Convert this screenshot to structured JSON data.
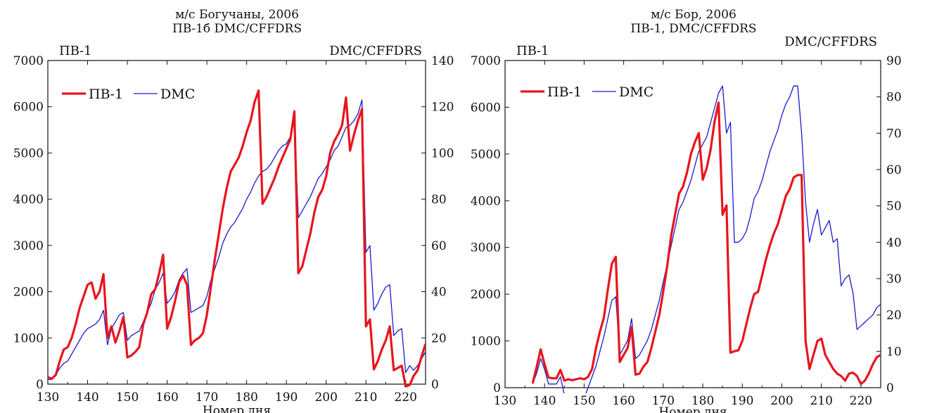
{
  "chart_data": [
    {
      "type": "line",
      "title": "м/с Богучаны, 2006",
      "subtitle": "ПВ-1б DMC/CFFDRS",
      "xlabel": "Номер дня",
      "ylabel_left": "ПВ-1",
      "ylabel_right": "DMC/CFFDRS",
      "xlim": [
        130,
        225
      ],
      "ylim_left": [
        0,
        7000
      ],
      "ylim_right": [
        0,
        140
      ],
      "xticks": [
        "130",
        "140",
        "150",
        "160",
        "170",
        "180",
        "190",
        "200",
        "210",
        "220"
      ],
      "yticks_left": [
        "0",
        "1000",
        "2000",
        "3000",
        "4000",
        "5000",
        "6000",
        "7000"
      ],
      "yticks_right": [
        "0",
        "20",
        "40",
        "60",
        "80",
        "100",
        "120",
        "140"
      ],
      "legend_position": "top-left",
      "series": [
        {
          "name": "ПВ-1",
          "axis": "left",
          "color": "#e8141c",
          "x": [
            130,
            131,
            132,
            133,
            134,
            135,
            136,
            137,
            138,
            139,
            140,
            141,
            142,
            143,
            144,
            145,
            146,
            147,
            148,
            149,
            150,
            151,
            152,
            153,
            154,
            155,
            156,
            157,
            158,
            159,
            160,
            161,
            162,
            163,
            164,
            165,
            166,
            167,
            168,
            169,
            170,
            171,
            172,
            173,
            174,
            175,
            176,
            177,
            178,
            179,
            180,
            181,
            182,
            183,
            184,
            185,
            186,
            187,
            188,
            189,
            190,
            191,
            192,
            193,
            194,
            195,
            196,
            197,
            198,
            199,
            200,
            201,
            202,
            203,
            204,
            205,
            206,
            207,
            208,
            209,
            210,
            211,
            212,
            213,
            214,
            215,
            216,
            217,
            218,
            219,
            220,
            221,
            222,
            223,
            224,
            225
          ],
          "values": [
            150,
            120,
            200,
            500,
            750,
            800,
            1000,
            1300,
            1650,
            1900,
            2150,
            2200,
            1850,
            2000,
            2380,
            1000,
            1250,
            900,
            1150,
            1450,
            580,
            620,
            700,
            800,
            1300,
            1550,
            1950,
            2050,
            2400,
            2800,
            1200,
            1450,
            1800,
            2200,
            2350,
            2150,
            850,
            950,
            1000,
            1100,
            1500,
            2100,
            2700,
            3250,
            3800,
            4250,
            4600,
            4750,
            4900,
            5150,
            5450,
            5700,
            6100,
            6350,
            3900,
            4050,
            4250,
            4450,
            4700,
            4900,
            5100,
            5300,
            5900,
            2400,
            2550,
            2900,
            3250,
            3700,
            4050,
            4200,
            4500,
            5000,
            5250,
            5400,
            5600,
            6200,
            5050,
            5400,
            5700,
            5950,
            1250,
            1400,
            320,
            500,
            750,
            950,
            1250,
            300,
            350,
            400,
            -50,
            -20,
            180,
            300,
            600,
            870
          ]
        },
        {
          "name": "DMC",
          "axis": "right",
          "color": "#1a1acc",
          "x": [
            130,
            131,
            132,
            133,
            134,
            135,
            136,
            137,
            138,
            139,
            140,
            141,
            142,
            143,
            144,
            145,
            146,
            147,
            148,
            149,
            150,
            151,
            152,
            153,
            154,
            155,
            156,
            157,
            158,
            159,
            160,
            161,
            162,
            163,
            164,
            165,
            166,
            167,
            168,
            169,
            170,
            171,
            172,
            173,
            174,
            175,
            176,
            177,
            178,
            179,
            180,
            181,
            182,
            183,
            184,
            185,
            186,
            187,
            188,
            189,
            190,
            191,
            192,
            193,
            194,
            195,
            196,
            197,
            198,
            199,
            200,
            201,
            202,
            203,
            204,
            205,
            206,
            207,
            208,
            209,
            210,
            211,
            212,
            213,
            214,
            215,
            216,
            217,
            218,
            219,
            220,
            221,
            222,
            223,
            224,
            225
          ],
          "values": [
            2,
            2,
            4,
            7,
            9,
            10,
            13,
            16,
            19,
            22,
            24,
            25,
            26,
            28,
            32,
            17,
            24,
            27,
            30,
            31,
            19,
            21,
            22,
            23,
            27,
            31,
            35,
            41,
            44,
            48,
            35,
            37,
            40,
            45,
            48,
            50,
            31,
            32,
            33,
            34,
            38,
            45,
            50,
            55,
            61,
            65,
            68,
            70,
            73,
            76,
            80,
            83,
            87,
            90,
            92,
            93,
            95,
            98,
            101,
            103,
            104,
            107,
            114,
            72,
            75,
            78,
            81,
            85,
            89,
            91,
            94,
            97,
            101,
            103,
            107,
            111,
            112,
            114,
            117,
            123,
            57,
            60,
            32,
            35,
            39,
            42,
            43,
            21,
            23,
            24,
            5,
            8,
            6,
            8,
            11,
            14
          ]
        }
      ]
    },
    {
      "type": "line",
      "title": "м/с Бор, 2006",
      "subtitle": "ПВ-1, DMC/CFFDRS",
      "xlabel": "Номер дня",
      "ylabel_left": "ПВ-1",
      "ylabel_right": "DMC/CFFDRS",
      "xlim": [
        130,
        225
      ],
      "ylim_left": [
        0,
        7000
      ],
      "ylim_right": [
        0,
        90
      ],
      "xticks": [
        "130",
        "140",
        "150",
        "160",
        "170",
        "180",
        "190",
        "200",
        "210",
        "220"
      ],
      "yticks_left": [
        "0",
        "1000",
        "2000",
        "3000",
        "4000",
        "5000",
        "6000",
        "7000"
      ],
      "yticks_right": [
        "0",
        "10",
        "20",
        "30",
        "40",
        "50",
        "60",
        "70",
        "80",
        "90"
      ],
      "legend_position": "top-left",
      "series": [
        {
          "name": "ПВ-1",
          "axis": "left",
          "color": "#e8141c",
          "x": [
            137,
            138,
            139,
            140,
            141,
            142,
            143,
            144,
            145,
            146,
            147,
            148,
            149,
            150,
            151,
            152,
            153,
            154,
            155,
            156,
            157,
            158,
            159,
            160,
            161,
            162,
            163,
            164,
            165,
            166,
            167,
            168,
            169,
            170,
            171,
            172,
            173,
            174,
            175,
            176,
            177,
            178,
            179,
            180,
            181,
            182,
            183,
            184,
            185,
            186,
            187,
            188,
            189,
            190,
            191,
            192,
            193,
            194,
            195,
            196,
            197,
            198,
            199,
            200,
            201,
            202,
            203,
            204,
            205,
            206,
            207,
            208,
            209,
            210,
            211,
            212,
            213,
            214,
            215,
            216,
            217,
            218,
            219,
            220,
            221,
            222,
            223,
            224,
            225
          ],
          "values": [
            100,
            450,
            820,
            500,
            220,
            200,
            200,
            380,
            150,
            180,
            160,
            180,
            200,
            180,
            230,
            400,
            850,
            1200,
            1500,
            2100,
            2650,
            2800,
            550,
            700,
            850,
            1300,
            280,
            300,
            450,
            550,
            850,
            1200,
            1550,
            2050,
            2600,
            3250,
            3700,
            4150,
            4300,
            4600,
            5000,
            5250,
            5450,
            4450,
            4700,
            5100,
            5700,
            6100,
            3700,
            3900,
            750,
            780,
            800,
            1000,
            1350,
            1700,
            2000,
            2050,
            2400,
            2750,
            3050,
            3300,
            3500,
            3800,
            4100,
            4250,
            4500,
            4550,
            4550,
            1000,
            400,
            700,
            1000,
            1050,
            700,
            550,
            400,
            300,
            250,
            150,
            300,
            320,
            250,
            80,
            150,
            300,
            500,
            650,
            700
          ]
        },
        {
          "name": "DMC",
          "axis": "right",
          "color": "#1a1acc",
          "x": [
            137,
            138,
            139,
            140,
            141,
            142,
            143,
            144,
            145,
            146,
            147,
            148,
            149,
            150,
            151,
            152,
            153,
            154,
            155,
            156,
            157,
            158,
            159,
            160,
            161,
            162,
            163,
            164,
            165,
            166,
            167,
            168,
            169,
            170,
            171,
            172,
            173,
            174,
            175,
            176,
            177,
            178,
            179,
            180,
            181,
            182,
            183,
            184,
            185,
            186,
            187,
            188,
            189,
            190,
            191,
            192,
            193,
            194,
            195,
            196,
            197,
            198,
            199,
            200,
            201,
            202,
            203,
            204,
            205,
            206,
            207,
            208,
            209,
            210,
            211,
            212,
            213,
            214,
            215,
            216,
            217,
            218,
            219,
            220,
            221,
            222,
            223,
            224,
            225
          ],
          "values": [
            1,
            4,
            8,
            5,
            1,
            1,
            1,
            3,
            -2,
            -3,
            -3,
            -3,
            -3,
            -3,
            0,
            3,
            6,
            10,
            14,
            19,
            24,
            25,
            9,
            11,
            13,
            19,
            8,
            9,
            11,
            13,
            16,
            20,
            24,
            29,
            34,
            39,
            44,
            49,
            51,
            54,
            57,
            61,
            65,
            67,
            69,
            73,
            77,
            81,
            83,
            70,
            73,
            40,
            40,
            41,
            43,
            47,
            52,
            54,
            57,
            61,
            65,
            68,
            71,
            75,
            78,
            80,
            83,
            83,
            70,
            51,
            40,
            45,
            49,
            42,
            44,
            46,
            40,
            41,
            28,
            30,
            31,
            26,
            16,
            17,
            18,
            19,
            20,
            22,
            23
          ]
        }
      ]
    }
  ]
}
